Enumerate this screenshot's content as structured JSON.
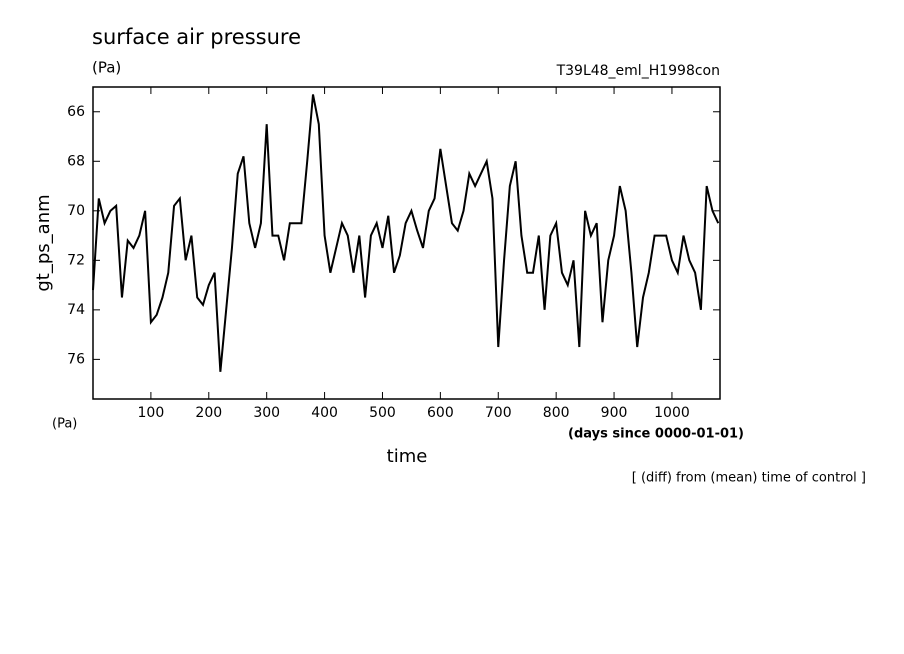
{
  "chart_data": {
    "type": "line",
    "title": "surface air pressure",
    "units_top": "(Pa)",
    "run_label": "T39L48_eml_H1998con",
    "ylabel": "gt_ps_anm",
    "units_y": "(Pa)",
    "xlabel": "time",
    "x_units": "(days since 0000-01-01)",
    "note": "[ (diff) from (mean) time of control ]",
    "color": "#000000",
    "x": [
      0,
      10,
      20,
      30,
      40,
      50,
      60,
      70,
      80,
      90,
      100,
      110,
      120,
      130,
      140,
      150,
      160,
      170,
      180,
      190,
      200,
      210,
      220,
      230,
      240,
      250,
      260,
      270,
      280,
      290,
      300,
      310,
      320,
      330,
      340,
      350,
      360,
      370,
      380,
      390,
      400,
      410,
      420,
      430,
      440,
      450,
      460,
      470,
      480,
      490,
      500,
      510,
      520,
      530,
      540,
      550,
      560,
      570,
      580,
      590,
      600,
      610,
      620,
      630,
      640,
      650,
      660,
      670,
      680,
      690,
      700,
      710,
      720,
      730,
      740,
      750,
      760,
      770,
      780,
      790,
      800,
      810,
      820,
      830,
      840,
      850,
      860,
      870,
      880,
      890,
      900,
      910,
      920,
      930,
      940,
      950,
      960,
      970,
      980,
      990,
      1000,
      1010,
      1020,
      1030,
      1040,
      1050,
      1060,
      1070,
      1080
    ],
    "values": [
      73.2,
      69.5,
      70.5,
      70,
      69.8,
      73.5,
      71.2,
      71.5,
      71,
      70,
      74.5,
      74.2,
      73.5,
      72.5,
      69.8,
      69.5,
      72,
      71,
      73.5,
      73.8,
      73,
      72.5,
      76.5,
      74,
      71.5,
      68.5,
      67.8,
      70.5,
      71.5,
      70.5,
      66.5,
      71,
      71,
      72,
      70.5,
      70.5,
      70.5,
      68,
      65.3,
      66.5,
      71,
      72.5,
      71.5,
      70.5,
      71,
      72.5,
      71,
      73.5,
      71,
      70.5,
      71.5,
      70.2,
      72.5,
      71.8,
      70.5,
      70,
      70.8,
      71.5,
      70,
      69.5,
      67.5,
      69,
      70.5,
      70.8,
      70,
      68.5,
      69,
      68.5,
      68,
      69.5,
      75.5,
      72,
      69,
      68,
      71,
      72.5,
      72.5,
      71,
      74,
      71,
      70.5,
      72.5,
      73,
      72,
      75.5,
      70,
      71,
      70.5,
      74.5,
      72,
      71,
      69,
      70,
      72.5,
      75.5,
      73.5,
      72.5,
      71,
      71,
      71,
      72,
      72.5,
      71,
      72,
      72.5,
      74,
      69,
      70,
      70.5
    ],
    "xlim": [
      0,
      1083
    ],
    "xticks": [
      100,
      200,
      300,
      400,
      500,
      600,
      700,
      800,
      900,
      1000
    ],
    "ylim": [
      77.6,
      65
    ],
    "yticks": [
      66,
      68,
      70,
      72,
      74,
      76
    ]
  }
}
